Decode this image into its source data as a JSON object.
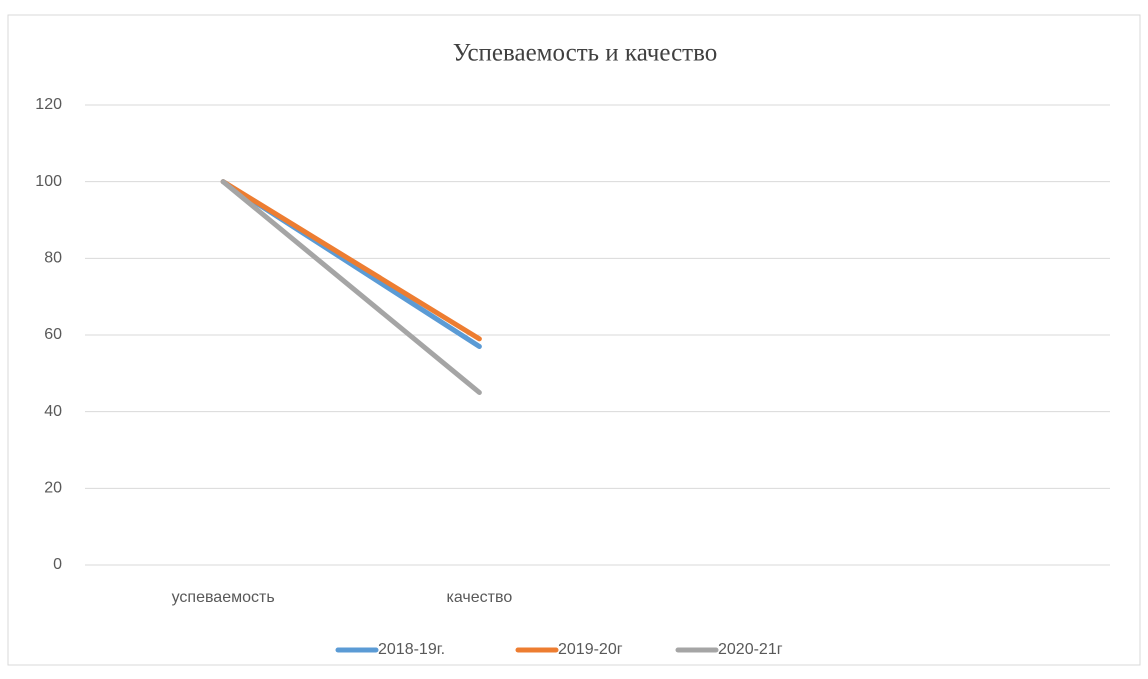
{
  "chart_data": {
    "type": "line",
    "title": "Успеваемость и качество",
    "categories": [
      "успеваемость",
      "качество",
      null,
      null
    ],
    "series": [
      {
        "name": "2018-19г.",
        "color": "#5b9bd5",
        "values": [
          100,
          57,
          null,
          null
        ]
      },
      {
        "name": "2019-20г",
        "color": "#ed7d31",
        "values": [
          100,
          59,
          null,
          null
        ]
      },
      {
        "name": "2020-21г",
        "color": "#a5a5a5",
        "values": [
          100,
          45,
          null,
          null
        ]
      }
    ],
    "ylim": [
      0,
      120
    ],
    "yticks": [
      0,
      20,
      40,
      60,
      80,
      100,
      120
    ],
    "grid": true,
    "legend": "bottom"
  }
}
